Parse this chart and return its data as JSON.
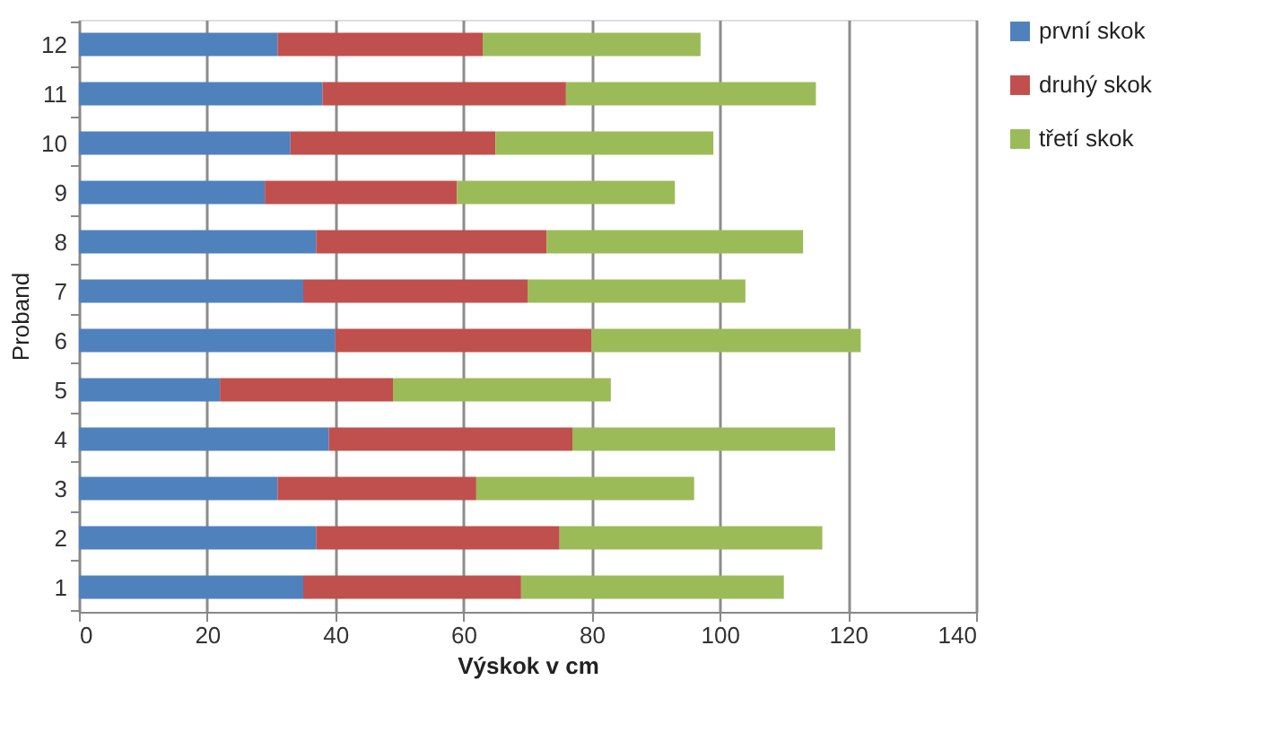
{
  "chart_data": {
    "type": "bar",
    "orientation": "horizontal",
    "stacked": true,
    "categories": [
      "12",
      "11",
      "10",
      "9",
      "8",
      "7",
      "6",
      "5",
      "4",
      "3",
      "2",
      "1"
    ],
    "series": [
      {
        "name": "první skok",
        "color": "#4f81bd",
        "values": [
          31,
          38,
          33,
          29,
          37,
          35,
          40,
          22,
          39,
          31,
          37,
          35
        ]
      },
      {
        "name": "druhý skok",
        "color": "#c0504d",
        "values": [
          32,
          38,
          32,
          30,
          36,
          35,
          40,
          27,
          38,
          31,
          38,
          34
        ]
      },
      {
        "name": "třetí skok",
        "color": "#9bbb59",
        "values": [
          34,
          39,
          34,
          34,
          40,
          34,
          42,
          34,
          41,
          34,
          41,
          41
        ]
      }
    ],
    "xlim": [
      0,
      140
    ],
    "xticks": [
      0,
      20,
      40,
      60,
      80,
      100,
      120,
      140
    ],
    "xlabel": "Výskok v cm",
    "ylabel": "Proband",
    "grid": "x",
    "legend": "right"
  }
}
